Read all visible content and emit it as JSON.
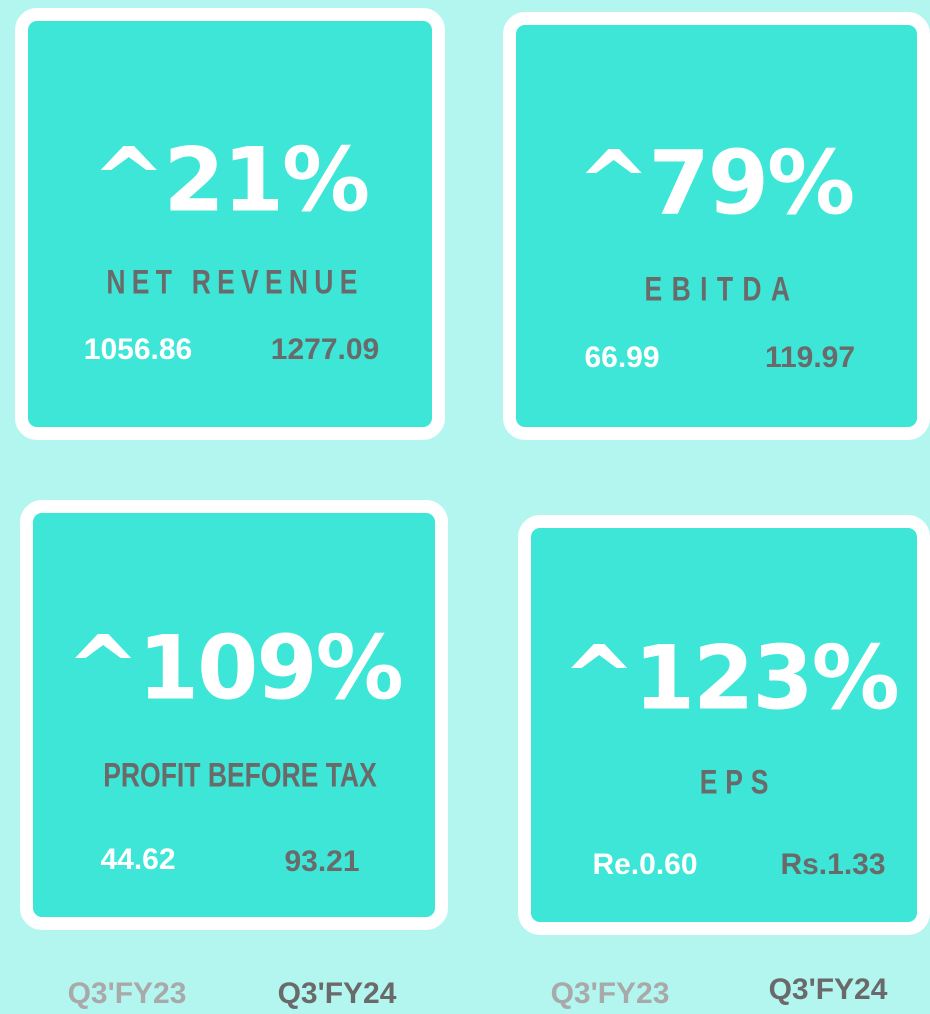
{
  "cards": [
    {
      "headline": "^21%",
      "label": "NET REVENUE",
      "previous": "1056.86",
      "current": "1277.09"
    },
    {
      "headline": "^79%",
      "label": "EBITDA",
      "previous": "66.99",
      "current": "119.97"
    },
    {
      "headline": "^109%",
      "label": "PROFIT BEFORE TAX",
      "previous": "44.62",
      "current": "93.21"
    },
    {
      "headline": "^123%",
      "label": "EPS",
      "previous": "Re.0.60",
      "current": "Rs.1.33"
    }
  ],
  "footer": [
    {
      "previous_period": "Q3'FY23",
      "current_period": "Q3'FY24"
    },
    {
      "previous_period": "Q3'FY23",
      "current_period": "Q3'FY24"
    }
  ]
}
